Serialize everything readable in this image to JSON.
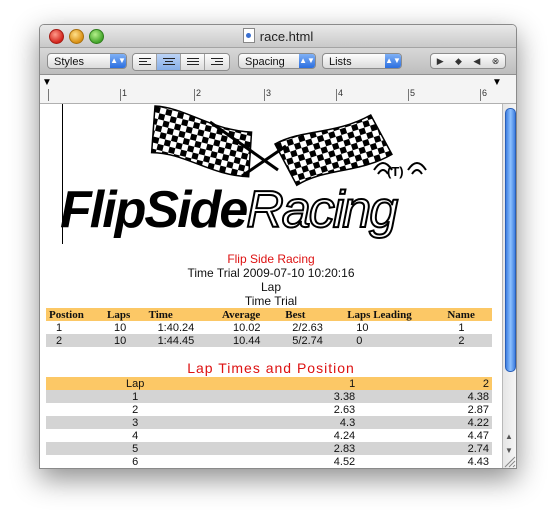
{
  "window": {
    "title": "race.html"
  },
  "toolbar": {
    "styles_label": "Styles",
    "spacing_label": "Spacing",
    "lists_label": "Lists",
    "align_selected": "center"
  },
  "ruler": {
    "numbers": [
      "1",
      "2",
      "3",
      "4",
      "5",
      "6"
    ]
  },
  "document": {
    "logo_word1": "FlipSide",
    "logo_word2": "Racing",
    "logo_mark": "(T)",
    "race_name": "Flip Side Racing",
    "session": "Time Trial 2009-07-10 10:20:16",
    "mode": "Lap",
    "type": "Time Trial",
    "results": {
      "headers": [
        "Postion",
        "Laps",
        "Time",
        "Average",
        "Best",
        "Laps Leading",
        "Name"
      ],
      "rows": [
        [
          "1",
          "10",
          "1:40.24",
          "10.02",
          "2/2.63",
          "10",
          "1"
        ],
        [
          "2",
          "10",
          "1:44.45",
          "10.44",
          "5/2.74",
          "0",
          "2"
        ]
      ]
    },
    "lap_heading": "Lap Times and Position",
    "laps": {
      "headers": [
        "Lap",
        "1",
        "2"
      ],
      "rows": [
        [
          "1",
          "3.38",
          "4.38"
        ],
        [
          "2",
          "2.63",
          "2.87"
        ],
        [
          "3",
          "4.3",
          "4.22"
        ],
        [
          "4",
          "4.24",
          "4.47"
        ],
        [
          "5",
          "2.83",
          "2.74"
        ],
        [
          "6",
          "4.52",
          "4.43"
        ]
      ]
    }
  }
}
